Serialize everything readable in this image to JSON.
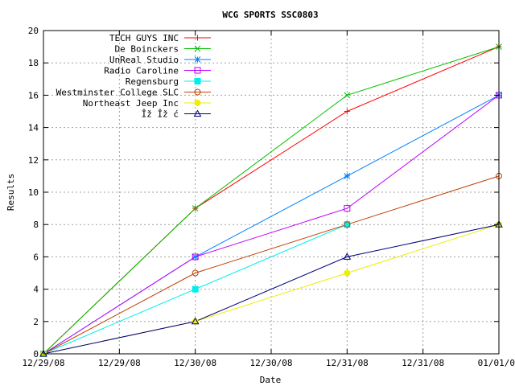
{
  "chart_data": {
    "type": "line",
    "title": "WCG SPORTS SSC0803",
    "xlabel": "Date",
    "ylabel": "Results",
    "x_tick_labels": [
      "12/29/08",
      "12/29/08",
      "12/30/08",
      "12/30/08",
      "12/31/08",
      "12/31/08",
      "01/01/0"
    ],
    "x_tick_positions": [
      0,
      0.5,
      1,
      1.5,
      2,
      2.5,
      3
    ],
    "xlim": [
      0,
      3
    ],
    "ylim": [
      0,
      20
    ],
    "y_ticks": [
      0,
      2,
      4,
      6,
      8,
      10,
      12,
      14,
      16,
      18,
      20
    ],
    "grid": true,
    "legend_position": "top-left",
    "series": [
      {
        "name": "TECH GUYS INC",
        "color": "#ff0000",
        "marker": "plus",
        "x": [
          0,
          1,
          2,
          3
        ],
        "values": [
          0,
          9,
          15,
          19
        ]
      },
      {
        "name": "De Boinckers",
        "color": "#00c000",
        "marker": "cross",
        "x": [
          0,
          1,
          2,
          3
        ],
        "values": [
          0,
          9,
          16,
          19
        ]
      },
      {
        "name": "UnReal Studio",
        "color": "#0080ff",
        "marker": "star",
        "x": [
          0,
          1,
          2,
          3
        ],
        "values": [
          0,
          6,
          11,
          16
        ]
      },
      {
        "name": "Radio Caroline",
        "color": "#c000ff",
        "marker": "open-square",
        "x": [
          0,
          1,
          2,
          3
        ],
        "values": [
          0,
          6,
          9,
          16
        ]
      },
      {
        "name": "Regensburg",
        "color": "#00eeee",
        "marker": "filled-square",
        "x": [
          0,
          1,
          2
        ],
        "values": [
          0,
          4,
          8
        ]
      },
      {
        "name": "Westminster College SLC",
        "color": "#c04000",
        "marker": "open-circle",
        "x": [
          0,
          1,
          2,
          3
        ],
        "values": [
          0,
          5,
          8,
          11
        ]
      },
      {
        "name": "Northeast Jeep Inc",
        "color": "#eeee00",
        "marker": "filled-circle",
        "x": [
          0,
          1,
          2,
          3
        ],
        "values": [
          0,
          2,
          5,
          8
        ]
      },
      {
        "name": "Îž Îž ć",
        "color": "#000080",
        "marker": "open-triangle",
        "x": [
          0,
          1,
          2,
          3
        ],
        "values": [
          0,
          2,
          6,
          8
        ]
      }
    ]
  }
}
